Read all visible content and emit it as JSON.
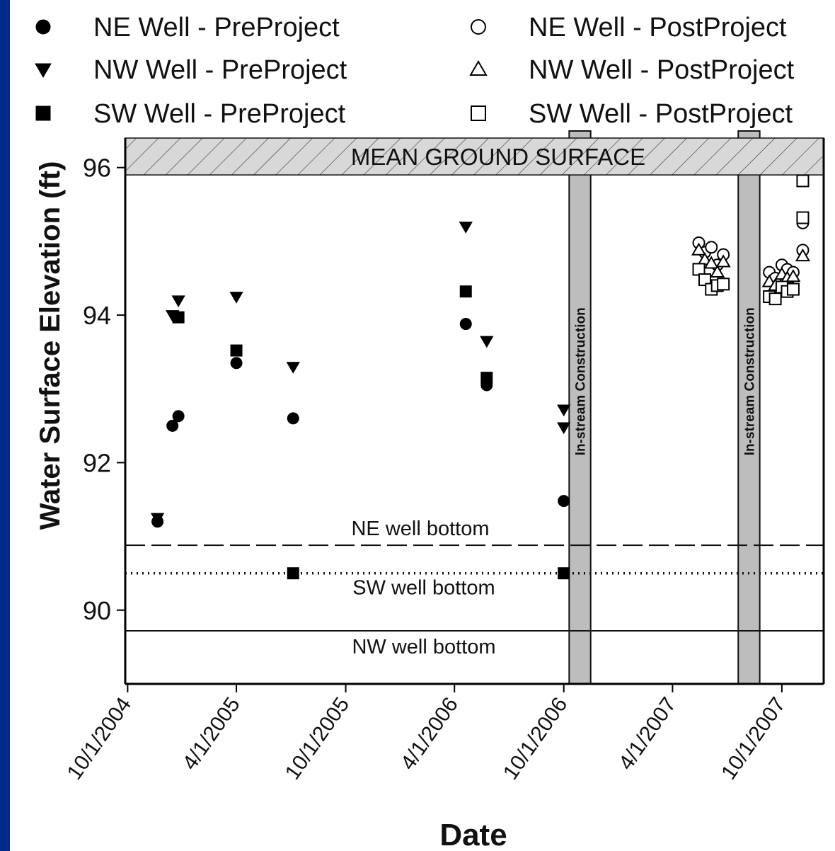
{
  "chart_data": {
    "type": "scatter",
    "title": "",
    "xlabel": "Date",
    "ylabel": "Water Surface Elevation (ft)",
    "x_type": "date",
    "xlim": [
      "2004-09-27",
      "2007-12-10"
    ],
    "ylim": [
      89.0,
      96.4
    ],
    "x_ticks": [
      "10/1/2004",
      "4/1/2005",
      "10/1/2005",
      "4/1/2006",
      "10/1/2006",
      "4/1/2007",
      "10/1/2007"
    ],
    "x_tick_dates": [
      "2004-10-01",
      "2005-04-01",
      "2005-10-01",
      "2006-04-01",
      "2006-10-01",
      "2007-04-01",
      "2007-10-01"
    ],
    "y_ticks": [
      90,
      92,
      94,
      96
    ],
    "legend_position": "top",
    "ground_surface": {
      "label": "MEAN GROUND SURFACE",
      "y_min": 95.9,
      "y_max": 96.4
    },
    "construction_periods": [
      {
        "label": "In-stream Construction",
        "start": "2006-10-10",
        "end": "2006-11-15"
      },
      {
        "label": "In-stream Construction",
        "start": "2007-07-20",
        "end": "2007-08-25"
      }
    ],
    "reference_lines": [
      {
        "label": "NE well bottom",
        "y": 90.88,
        "style": "dashed"
      },
      {
        "label": "SW well bottom",
        "y": 90.5,
        "style": "dotted"
      },
      {
        "label": "NW well bottom",
        "y": 89.72,
        "style": "solid"
      }
    ],
    "series": [
      {
        "name": "NE Well - PreProject",
        "marker": "circle-filled",
        "points": [
          [
            "2004-11-20",
            91.2
          ],
          [
            "2004-12-15",
            92.5
          ],
          [
            "2004-12-25",
            92.63
          ],
          [
            "2005-04-01",
            93.35
          ],
          [
            "2005-07-05",
            92.6
          ],
          [
            "2006-04-20",
            93.88
          ],
          [
            "2006-05-25",
            93.05
          ],
          [
            "2006-10-01",
            91.48
          ]
        ]
      },
      {
        "name": "NW Well - PreProject",
        "marker": "triangle-down-filled",
        "points": [
          [
            "2004-11-20",
            91.25
          ],
          [
            "2004-12-15",
            94.0
          ],
          [
            "2004-12-25",
            94.2
          ],
          [
            "2005-04-01",
            94.25
          ],
          [
            "2005-07-05",
            93.3
          ],
          [
            "2006-04-20",
            95.2
          ],
          [
            "2006-05-25",
            93.65
          ],
          [
            "2006-10-01",
            92.72
          ],
          [
            "2006-10-01",
            92.48
          ]
        ]
      },
      {
        "name": "SW Well - PreProject",
        "marker": "square-filled",
        "points": [
          [
            "2004-12-25",
            93.97
          ],
          [
            "2005-04-01",
            93.52
          ],
          [
            "2005-07-05",
            90.5
          ],
          [
            "2006-04-20",
            94.32
          ],
          [
            "2006-05-25",
            93.15
          ],
          [
            "2006-10-01",
            90.5
          ]
        ]
      },
      {
        "name": "NE Well - PostProject",
        "marker": "circle-open",
        "points": [
          [
            "2007-05-15",
            94.98
          ],
          [
            "2007-05-25",
            94.85
          ],
          [
            "2007-06-05",
            94.92
          ],
          [
            "2007-06-15",
            94.68
          ],
          [
            "2007-06-25",
            94.82
          ],
          [
            "2007-09-10",
            94.58
          ],
          [
            "2007-09-20",
            94.5
          ],
          [
            "2007-10-01",
            94.68
          ],
          [
            "2007-10-10",
            94.62
          ],
          [
            "2007-10-20",
            94.58
          ],
          [
            "2007-11-05",
            95.25
          ],
          [
            "2007-11-05",
            94.88
          ]
        ]
      },
      {
        "name": "NW Well - PostProject",
        "marker": "triangle-up-open",
        "points": [
          [
            "2007-05-15",
            94.88
          ],
          [
            "2007-05-25",
            94.75
          ],
          [
            "2007-06-05",
            94.7
          ],
          [
            "2007-06-15",
            94.58
          ],
          [
            "2007-06-25",
            94.72
          ],
          [
            "2007-09-10",
            94.45
          ],
          [
            "2007-09-20",
            94.4
          ],
          [
            "2007-10-01",
            94.55
          ],
          [
            "2007-10-10",
            94.5
          ],
          [
            "2007-10-20",
            94.52
          ],
          [
            "2007-11-05",
            94.8
          ]
        ]
      },
      {
        "name": "SW Well - PostProject",
        "marker": "square-open",
        "points": [
          [
            "2007-05-15",
            94.62
          ],
          [
            "2007-05-25",
            94.48
          ],
          [
            "2007-06-05",
            94.35
          ],
          [
            "2007-06-15",
            94.4
          ],
          [
            "2007-06-25",
            94.42
          ],
          [
            "2007-09-10",
            94.25
          ],
          [
            "2007-09-20",
            94.22
          ],
          [
            "2007-10-01",
            94.38
          ],
          [
            "2007-10-10",
            94.32
          ],
          [
            "2007-10-20",
            94.35
          ],
          [
            "2007-11-05",
            95.82
          ],
          [
            "2007-11-05",
            95.32
          ]
        ]
      }
    ]
  }
}
